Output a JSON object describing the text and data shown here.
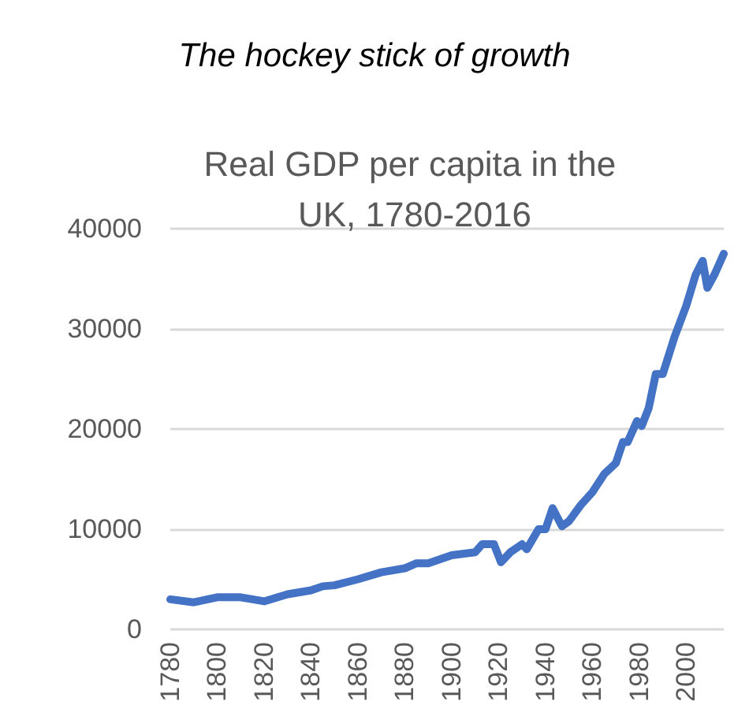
{
  "chart_data": {
    "type": "line",
    "title": "The hockey stick of growth",
    "subtitle": "Real GDP per capita in the UK, 1780-2016",
    "x": [
      1780,
      1790,
      1800,
      1810,
      1820,
      1830,
      1840,
      1845,
      1850,
      1860,
      1870,
      1880,
      1885,
      1890,
      1900,
      1910,
      1913,
      1918,
      1921,
      1925,
      1930,
      1932,
      1937,
      1940,
      1943,
      1947,
      1950,
      1955,
      1960,
      1965,
      1970,
      1973,
      1975,
      1979,
      1981,
      1984,
      1987,
      1990,
      1995,
      2000,
      2004,
      2007,
      2009,
      2012,
      2016
    ],
    "series": [
      {
        "color": "#4472c4",
        "values": [
          3000,
          2700,
          3200,
          3200,
          2800,
          3500,
          3900,
          4300,
          4400,
          5000,
          5700,
          6100,
          6600,
          6600,
          7400,
          7700,
          8500,
          8500,
          6700,
          7700,
          8500,
          8000,
          10000,
          10000,
          12100,
          10300,
          10800,
          12400,
          13700,
          15500,
          16600,
          18700,
          18700,
          20800,
          20300,
          22100,
          25500,
          25500,
          29200,
          32300,
          35400,
          36800,
          34100,
          35400,
          37500
        ]
      }
    ],
    "xlim": [
      1780,
      2016
    ],
    "xticks": [
      1780,
      1800,
      1820,
      1840,
      1860,
      1880,
      1900,
      1920,
      1940,
      1960,
      1980,
      2000
    ],
    "ylim": [
      0,
      40000
    ],
    "yticks": [
      0,
      10000,
      20000,
      30000,
      40000
    ],
    "grid": "y",
    "marker": "none",
    "line_style": "solid"
  }
}
